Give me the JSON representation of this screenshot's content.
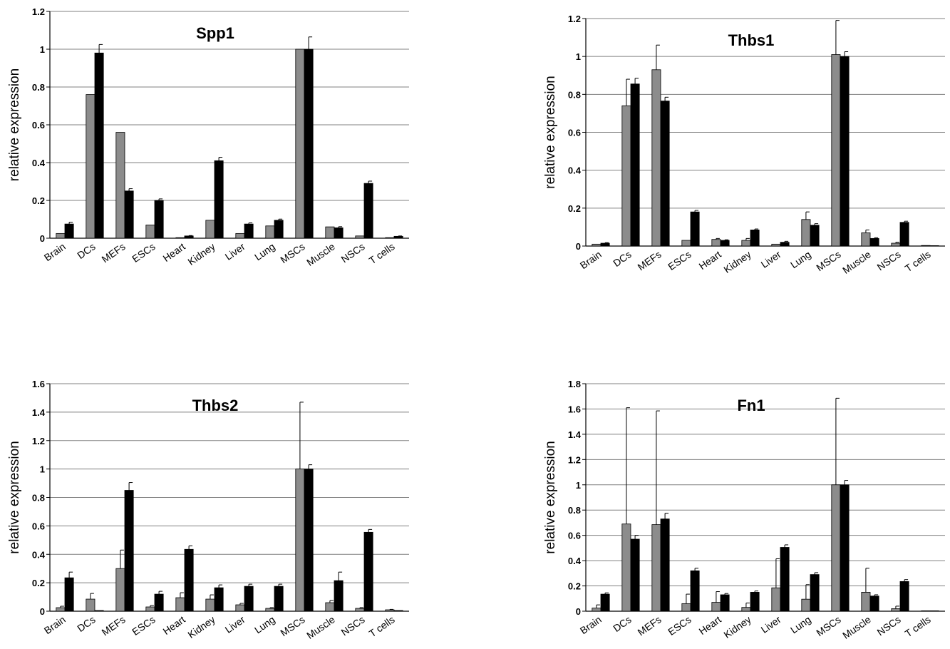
{
  "chart_data": [
    {
      "type": "bar",
      "title": "Spp1",
      "ylabel": "relative expression",
      "ylim": [
        0,
        1.2
      ],
      "yticks": [
        0,
        0.2,
        0.4,
        0.6,
        0.8,
        1,
        1.2
      ],
      "ytick_labels": [
        "0",
        "0.2",
        "0.4",
        "0.6",
        "0.8",
        "1",
        "1.2"
      ],
      "grid": true,
      "categories": [
        "Brain",
        "DCs",
        "MEFs",
        "ESCs",
        "Heart",
        "Kidney",
        "Liver",
        "Lung",
        "MSCs",
        "Muscle",
        "NSCs",
        "T cells"
      ],
      "series": [
        {
          "color": "#8c8c8c",
          "values": [
            0.025,
            0.76,
            0.56,
            0.07,
            0.003,
            0.095,
            0.025,
            0.065,
            1.0,
            0.06,
            0.012,
            0.003
          ],
          "errors": [
            0,
            0,
            0,
            0,
            0,
            0,
            0,
            0,
            0,
            0,
            0,
            0
          ]
        },
        {
          "color": "#000000",
          "values": [
            0.075,
            0.98,
            0.25,
            0.2,
            0.012,
            0.41,
            0.075,
            0.095,
            1.0,
            0.055,
            0.29,
            0.01
          ],
          "errors": [
            0.01,
            0.045,
            0.012,
            0.008,
            0.002,
            0.018,
            0.006,
            0.006,
            0.065,
            0.006,
            0.012,
            0.002
          ]
        }
      ]
    },
    {
      "type": "bar",
      "title": "Thbs1",
      "ylabel": "relative expression",
      "ylim": [
        0,
        1.2
      ],
      "yticks": [
        0,
        0.2,
        0.4,
        0.6,
        0.8,
        1,
        1.2
      ],
      "ytick_labels": [
        "0",
        "0.2",
        "0.4",
        "0.6",
        "0.8",
        "1",
        "1.2"
      ],
      "grid": true,
      "categories": [
        "Brain",
        "DCs",
        "MEFs",
        "ESCs",
        "Heart",
        "Kidney",
        "Liver",
        "Lung",
        "MSCs",
        "Muscle",
        "NSCs",
        "T cells"
      ],
      "series": [
        {
          "color": "#8c8c8c",
          "values": [
            0.01,
            0.74,
            0.93,
            0.03,
            0.035,
            0.03,
            0.01,
            0.14,
            1.01,
            0.07,
            0.015,
            0.003
          ],
          "errors": [
            0,
            0.14,
            0.13,
            0,
            0.005,
            0.01,
            0,
            0.04,
            0.18,
            0.015,
            0.005,
            0
          ]
        },
        {
          "color": "#000000",
          "values": [
            0.015,
            0.855,
            0.765,
            0.18,
            0.03,
            0.085,
            0.02,
            0.11,
            1.0,
            0.04,
            0.125,
            0.002
          ],
          "errors": [
            0.003,
            0.03,
            0.02,
            0.008,
            0.003,
            0.005,
            0.005,
            0.008,
            0.025,
            0.004,
            0.006,
            0
          ]
        }
      ]
    },
    {
      "type": "bar",
      "title": "Thbs2",
      "ylabel": "relative expression",
      "ylim": [
        0,
        1.6
      ],
      "yticks": [
        0,
        0.2,
        0.4,
        0.6,
        0.8,
        1,
        1.2,
        1.4,
        1.6
      ],
      "ytick_labels": [
        "0",
        "0.2",
        "0.4",
        "0.6",
        "0.8",
        "1",
        "1.2",
        "1.4",
        "1.6"
      ],
      "grid": true,
      "categories": [
        "Brain",
        "DCs",
        "MEFs",
        "ESCs",
        "Heart",
        "Kidney",
        "Liver",
        "Lung",
        "MSCs",
        "Muscle",
        "NSCs",
        "T cells"
      ],
      "series": [
        {
          "color": "#8c8c8c",
          "values": [
            0.025,
            0.085,
            0.3,
            0.03,
            0.095,
            0.085,
            0.045,
            0.02,
            1.0,
            0.06,
            0.02,
            0.01
          ],
          "errors": [
            0.01,
            0.04,
            0.13,
            0.01,
            0.035,
            0.03,
            0.01,
            0.005,
            0.47,
            0.015,
            0.005,
            0.003
          ]
        },
        {
          "color": "#000000",
          "values": [
            0.235,
            0.005,
            0.85,
            0.12,
            0.435,
            0.165,
            0.175,
            0.175,
            1.0,
            0.215,
            0.555,
            0.005
          ],
          "errors": [
            0.04,
            0,
            0.055,
            0.02,
            0.025,
            0.02,
            0.015,
            0.015,
            0.03,
            0.06,
            0.02,
            0
          ]
        }
      ]
    },
    {
      "type": "bar",
      "title": "Fn1",
      "ylabel": "relative expression",
      "ylim": [
        0,
        1.8
      ],
      "yticks": [
        0,
        0.2,
        0.4,
        0.6,
        0.8,
        1,
        1.2,
        1.4,
        1.6,
        1.8
      ],
      "ytick_labels": [
        "0",
        "0.2",
        "0.4",
        "0.6",
        "0.8",
        "1",
        "1.2",
        "1.4",
        "1.6",
        "1.8"
      ],
      "grid": true,
      "categories": [
        "Brain",
        "DCs",
        "MEFs",
        "ESCs",
        "Heart",
        "Kidney",
        "Liver",
        "Lung",
        "MSCs",
        "Muscle",
        "NSCs",
        "T cells"
      ],
      "series": [
        {
          "color": "#8c8c8c",
          "values": [
            0.025,
            0.69,
            0.685,
            0.06,
            0.07,
            0.03,
            0.185,
            0.095,
            1.0,
            0.15,
            0.02,
            0.003
          ],
          "errors": [
            0.025,
            0.92,
            0.9,
            0.075,
            0.085,
            0.035,
            0.23,
            0.115,
            0.685,
            0.19,
            0.02,
            0
          ]
        },
        {
          "color": "#000000",
          "values": [
            0.135,
            0.57,
            0.73,
            0.32,
            0.13,
            0.15,
            0.505,
            0.29,
            1.0,
            0.12,
            0.235,
            0.002
          ],
          "errors": [
            0.01,
            0.03,
            0.045,
            0.02,
            0.01,
            0.01,
            0.02,
            0.015,
            0.035,
            0.01,
            0.015,
            0
          ]
        }
      ]
    }
  ]
}
